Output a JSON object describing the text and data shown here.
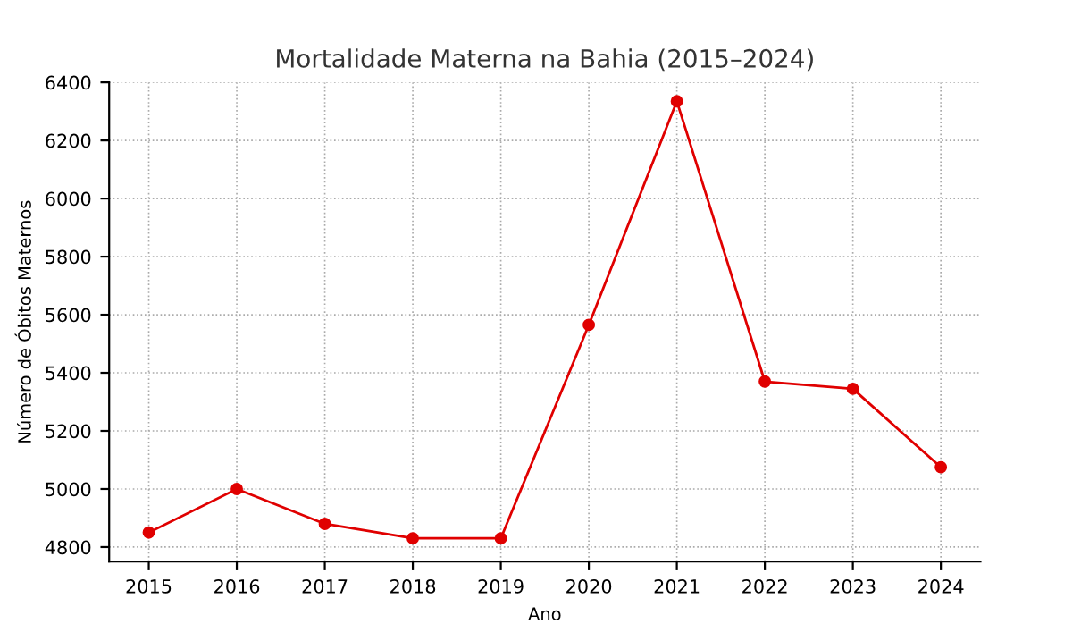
{
  "chart_data": {
    "type": "line",
    "title": "Mortalidade Materna na Bahia (2015–2024)",
    "xlabel": "Ano",
    "ylabel": "Número de Óbitos Maternos",
    "x": [
      2015,
      2016,
      2017,
      2018,
      2019,
      2020,
      2021,
      2022,
      2023,
      2024
    ],
    "series": [
      {
        "color": "#e00000",
        "values": [
          4850,
          5000,
          4880,
          4830,
          4830,
          5565,
          6335,
          5370,
          5345,
          5075
        ]
      }
    ],
    "xlim": [
      2014.55,
      2024.45
    ],
    "xticks": [
      2015,
      2016,
      2017,
      2018,
      2019,
      2020,
      2021,
      2022,
      2023,
      2024
    ],
    "ylim": [
      4750,
      6400
    ],
    "yticks": [
      4800,
      5000,
      5200,
      5400,
      5600,
      5800,
      6000,
      6200,
      6400
    ],
    "grid": true,
    "marker": "circle",
    "line_style": "solid"
  }
}
